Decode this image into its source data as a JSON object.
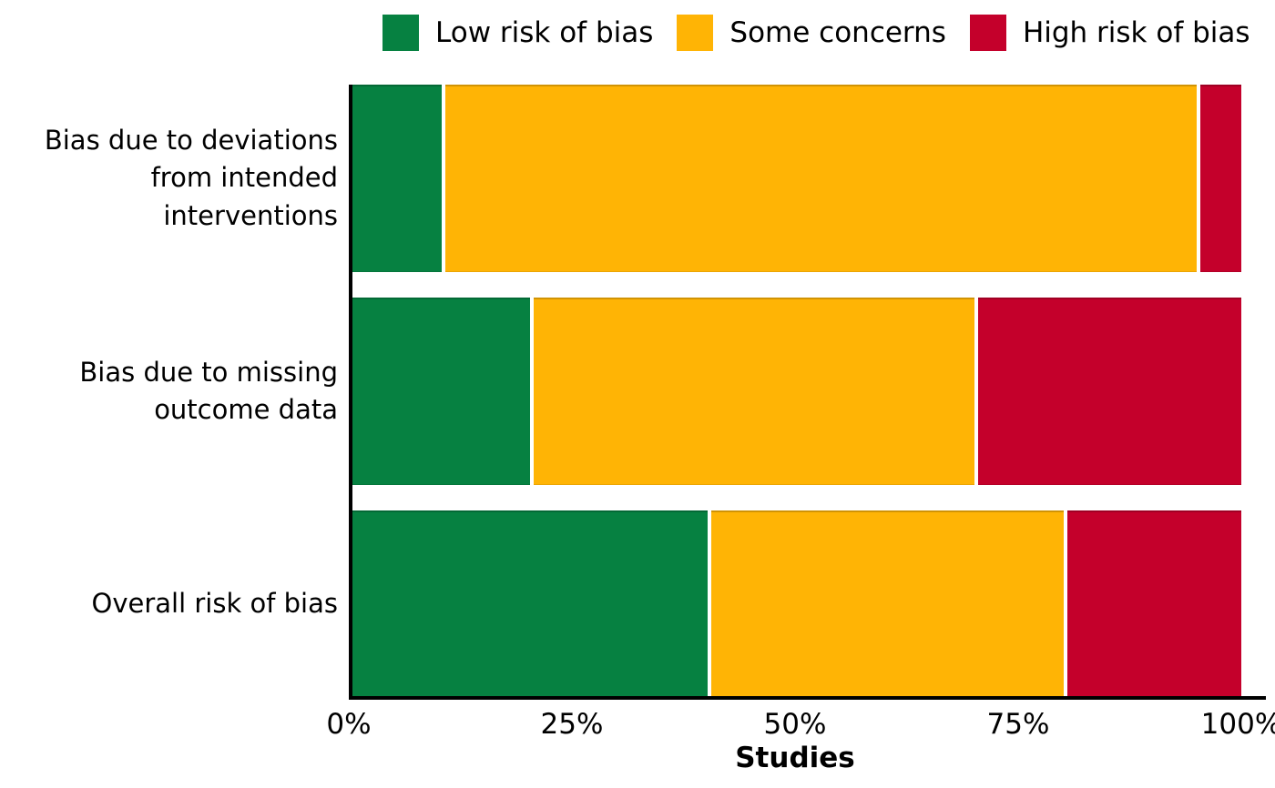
{
  "chart_data": {
    "type": "bar",
    "orientation": "horizontal",
    "stacked": true,
    "unit": "percent_of_studies",
    "title": "",
    "xlabel": "Studies",
    "ylabel": "",
    "xlim": [
      0,
      100
    ],
    "grid": false,
    "legend_position": "top",
    "axis_color": "#000000",
    "text_color": "#000000",
    "background_color": "#FFFFFF",
    "categories": [
      "Bias due to deviations from intended interventions",
      "Bias due to missing outcome data",
      "Overall risk of bias"
    ],
    "series": [
      {
        "name": "Low risk of bias",
        "color": "#068141",
        "values": [
          10,
          20,
          40
        ]
      },
      {
        "name": "Some concerns",
        "color": "#FFB405",
        "values": [
          85,
          50,
          40
        ]
      },
      {
        "name": "High risk of bias",
        "color": "#C4002B",
        "values": [
          5,
          30,
          20
        ]
      }
    ],
    "x_ticks": [
      {
        "label": "0%",
        "value": 0
      },
      {
        "label": "25%",
        "value": 25
      },
      {
        "label": "50%",
        "value": 50
      },
      {
        "label": "75%",
        "value": 75
      },
      {
        "label": "100%",
        "value": 100
      }
    ]
  }
}
